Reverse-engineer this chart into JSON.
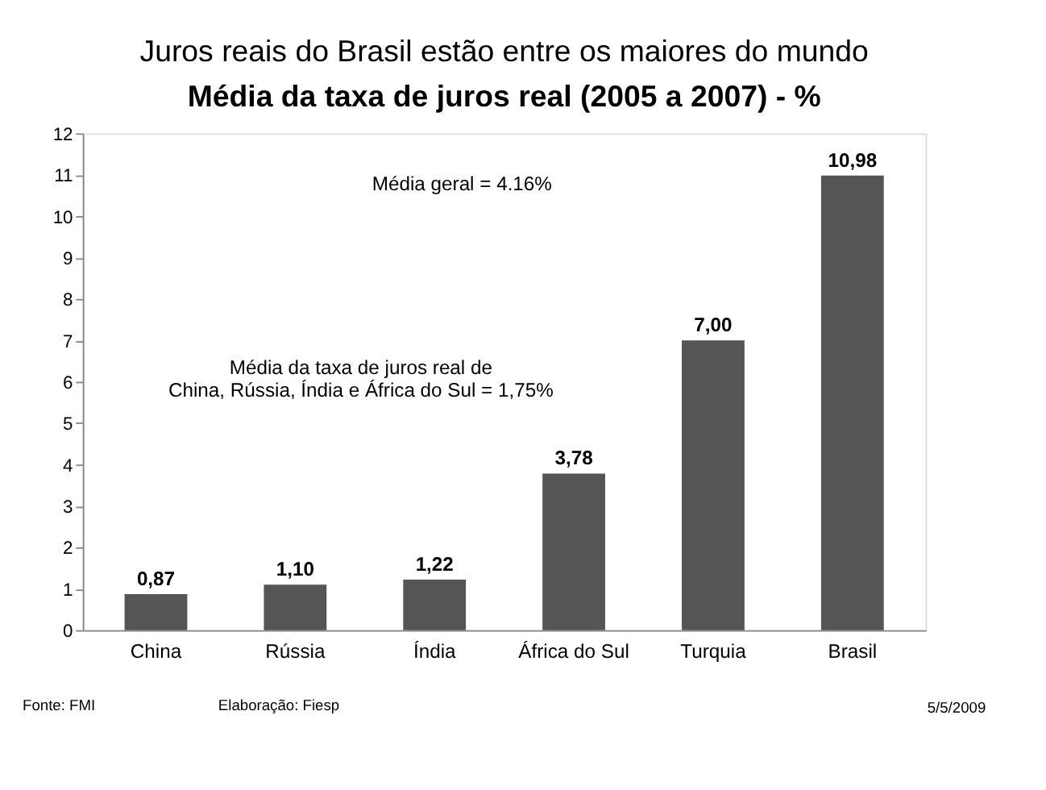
{
  "chart_data": {
    "type": "bar",
    "title": "Juros reais do Brasil estão entre os maiores do mundo",
    "subtitle": "Média da taxa de juros real (2005 a 2007) - %",
    "categories": [
      "China",
      "Rússia",
      "Índia",
      "África do Sul",
      "Turquia",
      "Brasil"
    ],
    "values": [
      0.87,
      1.1,
      1.22,
      3.78,
      7.0,
      10.98
    ],
    "value_labels": [
      "0,87",
      "1,10",
      "1,22",
      "3,78",
      "7,00",
      "10,98"
    ],
    "color": "#555555",
    "ylim": [
      0,
      12
    ],
    "yticks": [
      0,
      1,
      2,
      3,
      4,
      5,
      6,
      7,
      8,
      9,
      10,
      11,
      12
    ],
    "grid": false,
    "annotations": [
      "Média geral = 4.16%",
      "Média da taxa de juros real de\nChina, Rússia, Índia e África do Sul = 1,75%",
      "Fonte: FMI",
      "Elaboração: Fiesp",
      "5/5/2009"
    ]
  }
}
